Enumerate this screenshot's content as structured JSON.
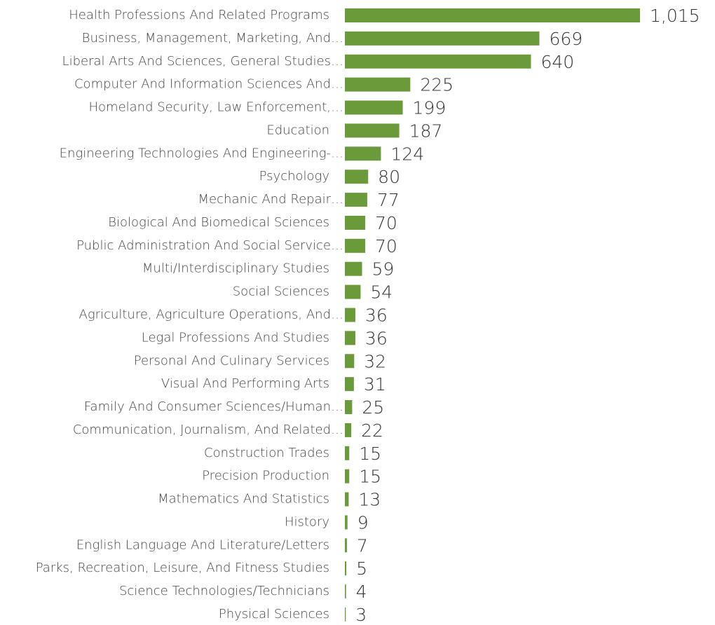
{
  "chart_data": {
    "type": "bar",
    "orientation": "horizontal",
    "color": "#6b9a3a",
    "categories": [
      "Health Professions And Related Programs",
      "Business, Management, Marketing, And…",
      "Liberal Arts And Sciences, General Studies…",
      "Computer And Information Sciences And…",
      "Homeland Security, Law Enforcement,…",
      "Education",
      "Engineering Technologies And Engineering-…",
      "Psychology",
      "Mechanic And Repair…",
      "Biological And Biomedical Sciences",
      "Public Administration And Social Service…",
      "Multi/Interdisciplinary Studies",
      "Social Sciences",
      "Agriculture, Agriculture Operations, And…",
      "Legal Professions And Studies",
      "Personal And Culinary Services",
      "Visual And Performing Arts",
      "Family And Consumer Sciences/Human…",
      "Communication, Journalism, And Related…",
      "Construction Trades",
      "Precision Production",
      "Mathematics And Statistics",
      "History",
      "English Language And Literature/Letters",
      "Parks, Recreation, Leisure, And Fitness Studies",
      "Science Technologies/Technicians",
      "Physical Sciences"
    ],
    "values": [
      1015,
      669,
      640,
      225,
      199,
      187,
      124,
      80,
      77,
      70,
      70,
      59,
      54,
      36,
      36,
      32,
      31,
      25,
      22,
      15,
      15,
      13,
      9,
      7,
      5,
      4,
      3
    ],
    "value_labels": [
      "1,015",
      "669",
      "640",
      "225",
      "199",
      "187",
      "124",
      "80",
      "77",
      "70",
      "70",
      "59",
      "54",
      "36",
      "36",
      "32",
      "31",
      "25",
      "22",
      "15",
      "15",
      "13",
      "9",
      "7",
      "5",
      "4",
      "3"
    ]
  }
}
